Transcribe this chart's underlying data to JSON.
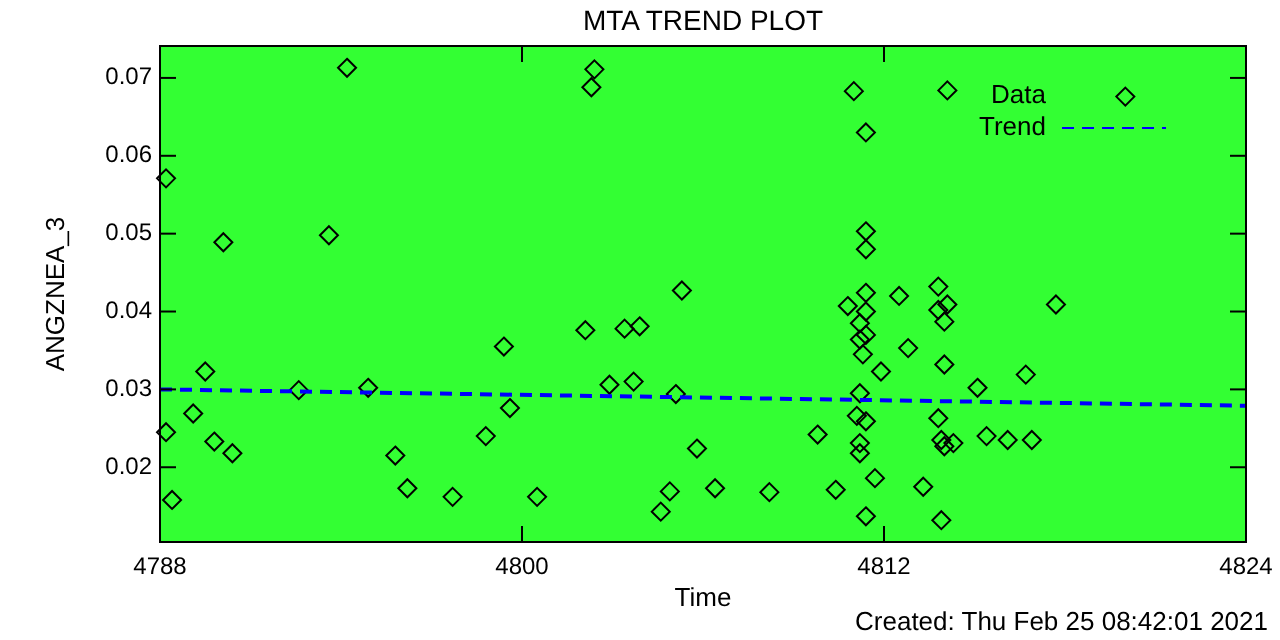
{
  "chart_data": {
    "type": "scatter",
    "title": "MTA TREND PLOT",
    "xlabel": "Time",
    "ylabel": "ANGZNEA_3",
    "annotations": [
      "Created: Thu Feb 25 08:42:01 2021"
    ],
    "xlim": [
      4788,
      4824
    ],
    "xticks": [
      4788,
      4800,
      4812,
      4824
    ],
    "ylim": [
      0.0104,
      0.0741
    ],
    "yticks": [
      0.02,
      0.03,
      0.04,
      0.05,
      0.06,
      0.07
    ],
    "grid": false,
    "legend": "top right",
    "series": [
      {
        "name": "Data",
        "color": "#000000",
        "marker": "diamond",
        "x": [
          4788.2,
          4788.4,
          4788.2,
          4789.1,
          4789.5,
          4789.8,
          4790.1,
          4790.4,
          4792.6,
          4793.6,
          4794.2,
          4794.9,
          4795.8,
          4796.2,
          4797.7,
          4798.8,
          4799.4,
          4799.6,
          4800.5,
          4802.1,
          4802.4,
          4802.3,
          4802.9,
          4803.4,
          4803.9,
          4803.7,
          4805.1,
          4805.3,
          4804.9,
          4804.6,
          4805.8,
          4806.4,
          4808.2,
          4809.8,
          4810.4,
          4811.0,
          4811.4,
          4811.4,
          4811.4,
          4811.4,
          4810.8,
          4811.4,
          4811.2,
          4811.4,
          4811.2,
          4811.3,
          4811.9,
          4811.2,
          4811.1,
          4811.4,
          4811.2,
          4811.2,
          4811.7,
          4811.4,
          4812.5,
          4812.8,
          4814.1,
          4813.8,
          4814.1,
          4813.8,
          4814.0,
          4814.0,
          4813.8,
          4813.9,
          4814.0,
          4814.3,
          4813.3,
          4813.9,
          4815.1,
          4815.4,
          4816.1,
          4816.7,
          4816.9,
          4817.7,
          4820.0
        ],
        "values": [
          0.0571,
          0.0158,
          0.0245,
          0.0269,
          0.0323,
          0.0233,
          0.0489,
          0.0218,
          0.0299,
          0.0498,
          0.0713,
          0.0302,
          0.0215,
          0.0173,
          0.0162,
          0.024,
          0.0355,
          0.0276,
          0.0162,
          0.0376,
          0.0711,
          0.0688,
          0.0306,
          0.0378,
          0.0381,
          0.031,
          0.0294,
          0.0427,
          0.0169,
          0.0143,
          0.0224,
          0.0173,
          0.0168,
          0.0242,
          0.0171,
          0.0683,
          0.063,
          0.0503,
          0.048,
          0.0424,
          0.0407,
          0.04,
          0.0385,
          0.037,
          0.0364,
          0.0345,
          0.0323,
          0.0295,
          0.0266,
          0.0259,
          0.0231,
          0.0218,
          0.0186,
          0.0137,
          0.042,
          0.0353,
          0.0684,
          0.0432,
          0.0409,
          0.0402,
          0.0387,
          0.0332,
          0.0263,
          0.0235,
          0.0227,
          0.0231,
          0.0175,
          0.0132,
          0.0302,
          0.024,
          0.0235,
          0.0319,
          0.0235,
          0.0409,
          0.0676
        ]
      },
      {
        "name": "Trend",
        "type": "line",
        "color": "#0000ff",
        "line_style": "dashed",
        "x": [
          4788,
          4824
        ],
        "values": [
          0.03,
          0.0279
        ]
      }
    ]
  }
}
